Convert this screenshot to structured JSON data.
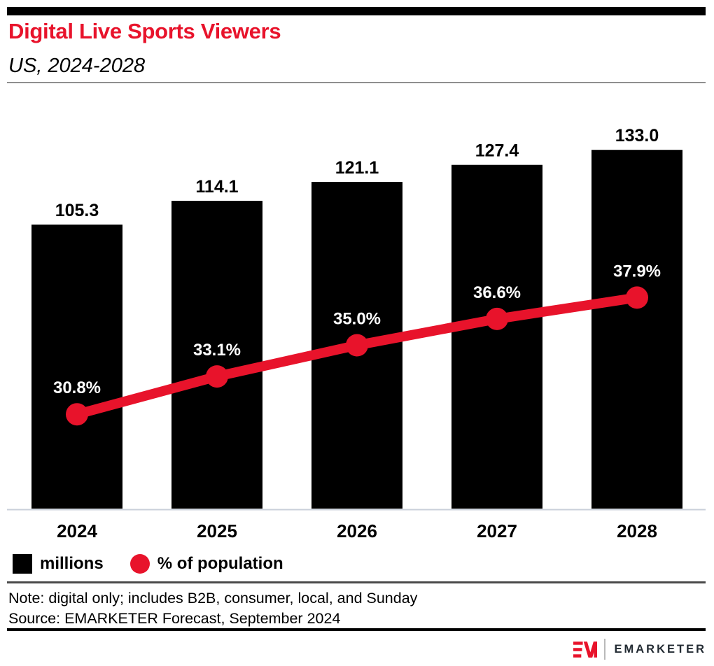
{
  "header": {
    "title": "Digital Live Sports Viewers",
    "subtitle": "US, 2024-2028"
  },
  "chart_data": {
    "type": "bar",
    "title": "Digital Live Sports Viewers",
    "subtitle": "US, 2024-2028",
    "categories": [
      "2024",
      "2025",
      "2026",
      "2027",
      "2028"
    ],
    "series": [
      {
        "name": "millions",
        "type": "bar",
        "color": "#000000",
        "values": [
          105.3,
          114.1,
          121.1,
          127.4,
          133.0
        ],
        "labels": [
          "105.3",
          "114.1",
          "121.1",
          "127.4",
          "133.0"
        ]
      },
      {
        "name": "% of population",
        "type": "line",
        "color": "#e8132b",
        "values": [
          30.8,
          33.1,
          35.0,
          36.6,
          37.9
        ],
        "labels": [
          "30.8%",
          "33.1%",
          "35.0%",
          "36.6%",
          "37.9%"
        ]
      }
    ],
    "xlabel": "",
    "ylabel": "",
    "grid": false,
    "legend_position": "bottom",
    "bar_axis_range": [
      0,
      140
    ],
    "line_axis_range": [
      25,
      40
    ]
  },
  "legend": {
    "items": [
      {
        "label": "millions",
        "swatch": "square",
        "color": "#000000"
      },
      {
        "label": "% of population",
        "swatch": "circle",
        "color": "#e8132b"
      }
    ]
  },
  "footer": {
    "note": "Note: digital only; includes B2B, consumer, local, and Sunday",
    "source": "Source: EMARKETER Forecast, September 2024"
  },
  "branding": {
    "wordmark": "EMARKETER",
    "monogram": "EM"
  },
  "colors": {
    "accent_red": "#e8132b",
    "bar_black": "#000000",
    "axis_line": "#c9cfda",
    "value_label": "#000000",
    "pct_label": "#ffffff"
  }
}
